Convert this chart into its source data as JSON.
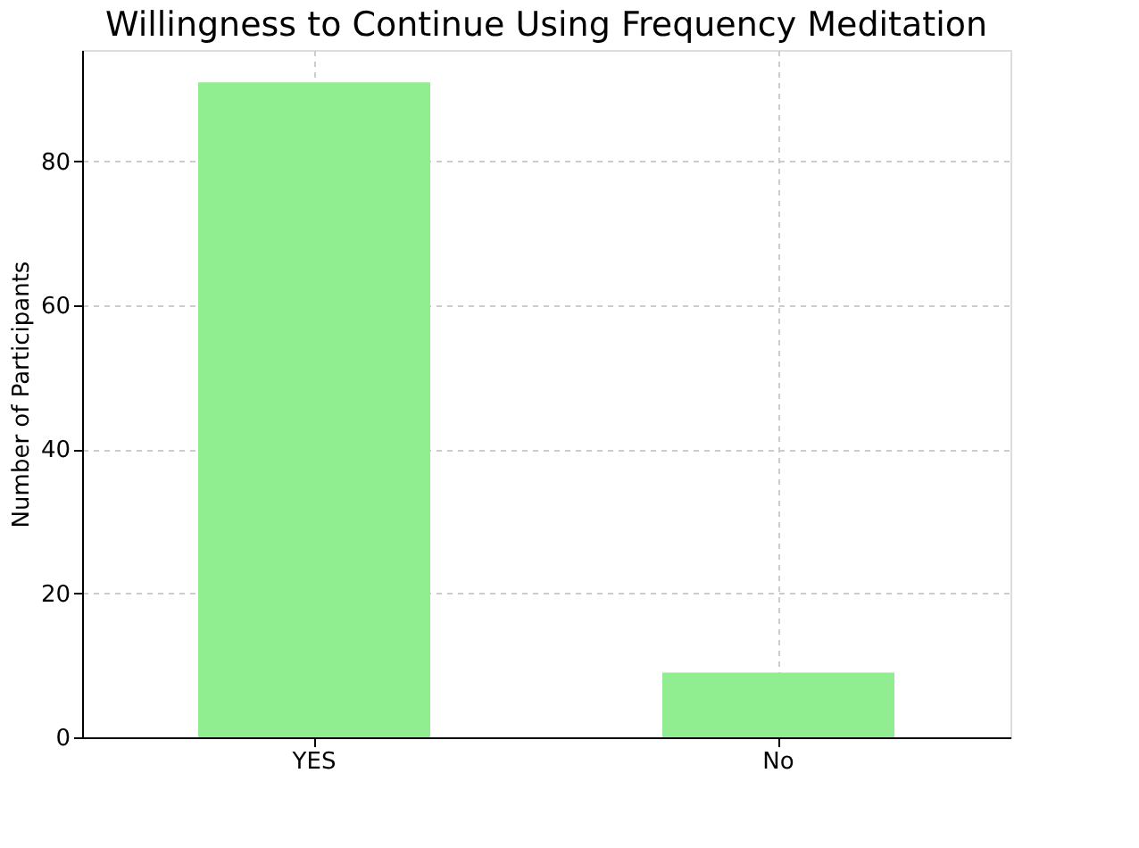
{
  "chart_data": {
    "type": "bar",
    "title": "Willingness to Continue Using Frequency Meditation",
    "ylabel": "Number of Participants",
    "categories": [
      "YES",
      "No"
    ],
    "values": [
      91,
      9
    ],
    "color": "#90ee90",
    "ylim": [
      0,
      95.5
    ],
    "yticks": [
      0,
      20,
      40,
      60,
      80
    ],
    "grid": true
  }
}
